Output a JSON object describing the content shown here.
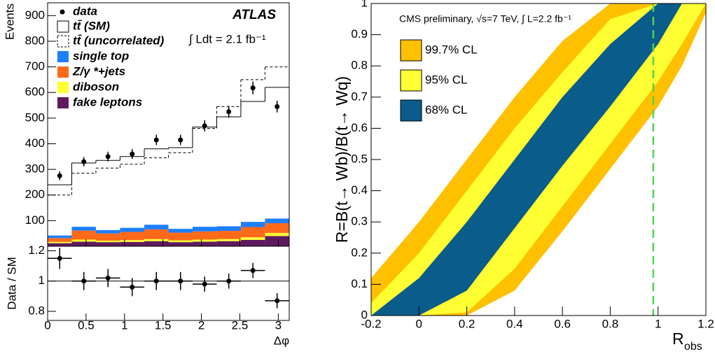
{
  "chart_data": [
    {
      "type": "histogram",
      "bins": [
        0,
        0.314,
        0.628,
        0.942,
        1.257,
        1.571,
        1.885,
        2.199,
        2.513,
        2.827,
        3.142
      ],
      "xlim": [
        0,
        3.142
      ],
      "xticks": [
        0,
        0.5,
        1,
        1.5,
        2,
        2.5,
        3
      ],
      "xlabel": "Δφ",
      "ylabel": "Events",
      "ylim": [
        0,
        950
      ],
      "yticks": [
        100,
        200,
        300,
        400,
        500,
        600,
        700,
        800,
        900
      ],
      "annotation": "ATLAS",
      "luminosity": "∫ Ldt = 2.1 fb⁻¹",
      "data": {
        "name": "data",
        "color": "#000000",
        "values": [
          275,
          330,
          350,
          360,
          415,
          415,
          470,
          525,
          618,
          545
        ],
        "errors": [
          17,
          18,
          19,
          19,
          20,
          20,
          22,
          23,
          25,
          23
        ]
      },
      "step_series": [
        {
          "name": "tt̄ (SM)",
          "color": "#000000",
          "dashed": false,
          "values": [
            240,
            325,
            335,
            350,
            380,
            385,
            465,
            505,
            565,
            620
          ]
        },
        {
          "name": "tt̄ (uncorrelated)",
          "color": "#000000",
          "dashed": true,
          "values": [
            200,
            285,
            305,
            320,
            345,
            365,
            460,
            545,
            650,
            700
          ]
        }
      ],
      "stack": [
        {
          "name": "single top",
          "color": "#1e7fff",
          "values": [
            10,
            15,
            13,
            16,
            18,
            15,
            18,
            18,
            20,
            18
          ]
        },
        {
          "name": "Z/γ *+jets",
          "color": "#ff6a1a",
          "values": [
            15,
            35,
            28,
            32,
            38,
            30,
            32,
            32,
            40,
            38
          ]
        },
        {
          "name": "diboson",
          "color": "#ffff33",
          "values": [
            5,
            8,
            6,
            7,
            8,
            7,
            8,
            8,
            10,
            12
          ]
        },
        {
          "name": "fake leptons",
          "color": "#5f1a5f",
          "values": [
            12,
            18,
            16,
            17,
            20,
            16,
            18,
            20,
            25,
            40
          ]
        }
      ],
      "ratio": {
        "ylabel": "Data / SM",
        "ylim": [
          0.74,
          1.23
        ],
        "yticks": [
          0.8,
          1,
          1.2
        ],
        "reference": 1,
        "values": [
          1.15,
          1.0,
          1.02,
          0.96,
          1.0,
          1.0,
          0.98,
          1.0,
          1.07,
          0.87
        ],
        "errors": [
          0.07,
          0.06,
          0.06,
          0.06,
          0.06,
          0.06,
          0.05,
          0.05,
          0.05,
          0.05
        ]
      }
    },
    {
      "type": "band",
      "x": [
        -0.2,
        0,
        0.2,
        0.4,
        0.6,
        0.8,
        1.0,
        1.1,
        1.2
      ],
      "xlim": [
        -0.2,
        1.2
      ],
      "xticks": [
        -0.2,
        0,
        0.2,
        0.4,
        0.6,
        0.8,
        1,
        1.2
      ],
      "ylim": [
        0,
        1
      ],
      "yticks": [
        0,
        0.1,
        0.2,
        0.3,
        0.4,
        0.5,
        0.6,
        0.7,
        0.8,
        0.9,
        1
      ],
      "xlabel": {
        "text": "R",
        "subscript": "obs"
      },
      "ylabel": "R=B(t→ Wb)/B(t→ Wq)",
      "annotation": "CMS preliminary, √s=7 TeV, ∫ L=2.2 fb⁻¹",
      "series": [
        {
          "name": "99.7% CL",
          "color": "#ffc000",
          "upper": [
            0.12,
            0.3,
            0.5,
            0.7,
            0.88,
            1,
            1,
            1,
            1
          ],
          "lower": [
            0,
            0,
            0,
            0.08,
            0.27,
            0.47,
            0.67,
            0.8,
            0.97
          ]
        },
        {
          "name": "95% CL",
          "color": "#ffff33",
          "upper": [
            0.04,
            0.2,
            0.4,
            0.6,
            0.78,
            0.95,
            1,
            1,
            1
          ],
          "lower": [
            0,
            0,
            0.01,
            0.15,
            0.35,
            0.55,
            0.75,
            0.87,
            1
          ]
        },
        {
          "name": "68% CL",
          "color": "#0a5c8a",
          "upper": [
            0,
            0.12,
            0.3,
            0.5,
            0.7,
            0.87,
            1,
            1,
            1
          ],
          "lower": [
            0,
            0,
            0.08,
            0.28,
            0.48,
            0.67,
            0.87,
            1,
            1
          ]
        }
      ],
      "vline": {
        "value": 0.98,
        "color": "#4fd54f"
      }
    }
  ]
}
